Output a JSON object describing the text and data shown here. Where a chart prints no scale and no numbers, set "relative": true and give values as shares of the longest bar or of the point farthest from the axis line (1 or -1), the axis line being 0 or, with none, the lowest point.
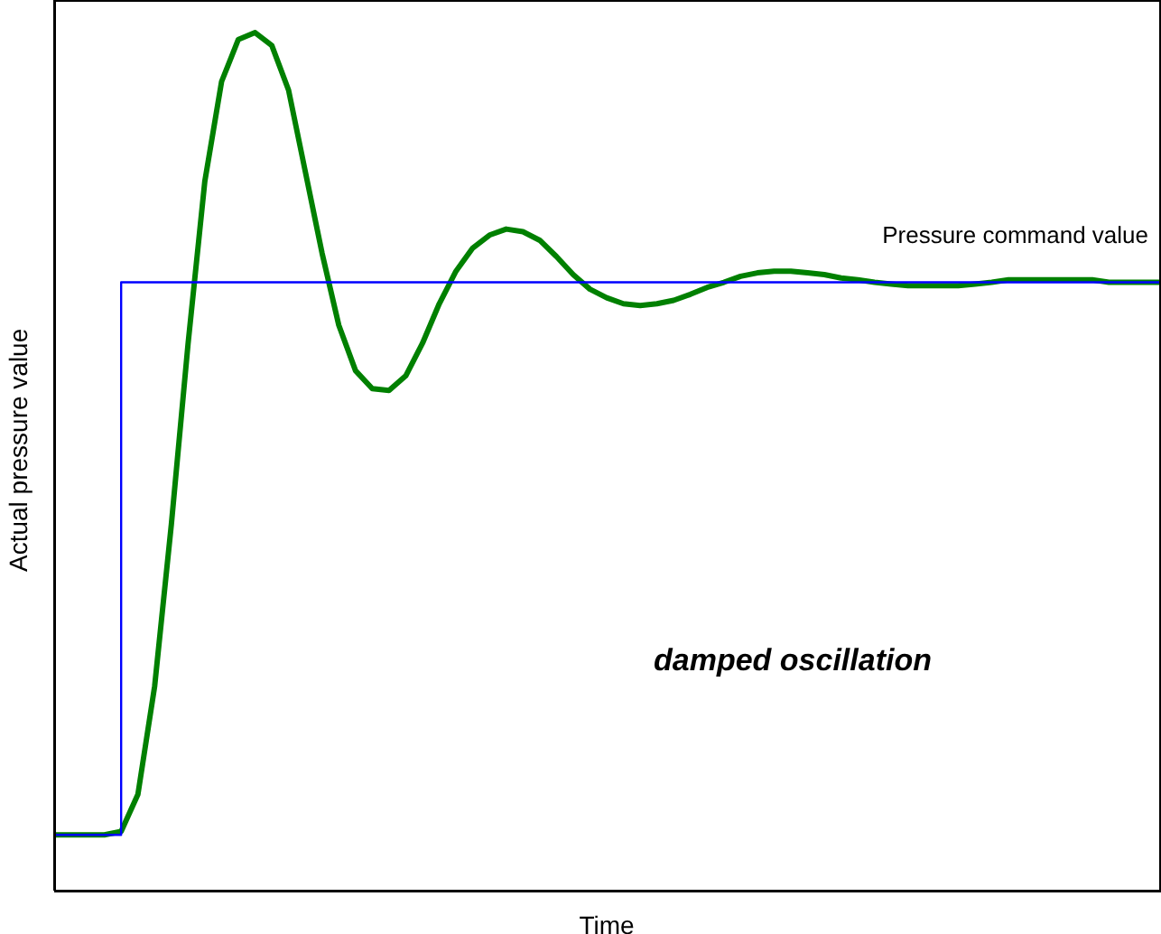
{
  "chart_data": {
    "type": "line",
    "relative": true,
    "xlabel": "Time",
    "ylabel": "Actual pressure value",
    "marker": "none",
    "line_style": "solid",
    "categories": [
      null,
      null,
      null,
      null,
      null,
      null,
      null,
      null,
      null,
      null,
      null,
      null,
      null,
      null,
      null,
      null,
      null,
      null,
      null,
      null,
      null,
      null,
      null,
      null,
      null,
      null,
      null,
      null,
      null,
      null,
      null,
      null,
      null,
      null,
      null,
      null,
      null,
      null,
      null,
      null,
      null,
      null,
      null,
      null,
      null,
      null,
      null,
      null,
      null,
      null,
      null,
      null,
      null,
      null,
      null,
      null,
      null,
      null,
      null,
      null,
      null,
      null,
      null,
      null,
      null,
      null,
      null
    ],
    "series": [
      {
        "name": "Pressure command value",
        "type": "step",
        "color": "#0000ff",
        "values": [
          0.065,
          0.065,
          0.065,
          0.065,
          0.709,
          0.709,
          0.709,
          0.709,
          0.709,
          0.709,
          0.709,
          0.709,
          0.709,
          0.709,
          0.709,
          0.709,
          0.709,
          0.709,
          0.709,
          0.709,
          0.709,
          0.709,
          0.709,
          0.709,
          0.709,
          0.709,
          0.709,
          0.709,
          0.709,
          0.709,
          0.709,
          0.709,
          0.709,
          0.709,
          0.709,
          0.709,
          0.709,
          0.709,
          0.709,
          0.709,
          0.709,
          0.709,
          0.709,
          0.709,
          0.709,
          0.709,
          0.709,
          0.709,
          0.709,
          0.709,
          0.709,
          0.709,
          0.709,
          0.709,
          0.709,
          0.709,
          0.709,
          0.709,
          0.709,
          0.709,
          0.709,
          0.709,
          0.709,
          0.709,
          0.709,
          0.709,
          0.709
        ]
      },
      {
        "color": "#008000",
        "values": [
          0.065,
          0.065,
          0.065,
          0.065,
          0.069,
          0.112,
          0.238,
          0.427,
          0.638,
          0.827,
          0.943,
          0.992,
          1.0,
          0.985,
          0.933,
          0.838,
          0.743,
          0.659,
          0.606,
          0.585,
          0.583,
          0.6,
          0.638,
          0.684,
          0.722,
          0.749,
          0.764,
          0.771,
          0.768,
          0.758,
          0.739,
          0.718,
          0.701,
          0.691,
          0.684,
          0.682,
          0.684,
          0.688,
          0.695,
          0.703,
          0.709,
          0.716,
          0.72,
          0.722,
          0.722,
          0.72,
          0.718,
          0.714,
          0.712,
          0.709,
          0.707,
          0.705,
          0.705,
          0.705,
          0.705,
          0.707,
          0.709,
          0.712,
          0.712,
          0.712,
          0.712,
          0.712,
          0.712,
          0.709,
          0.709,
          0.709,
          0.709
        ]
      }
    ],
    "annotations": [
      "damped oscillation"
    ]
  }
}
